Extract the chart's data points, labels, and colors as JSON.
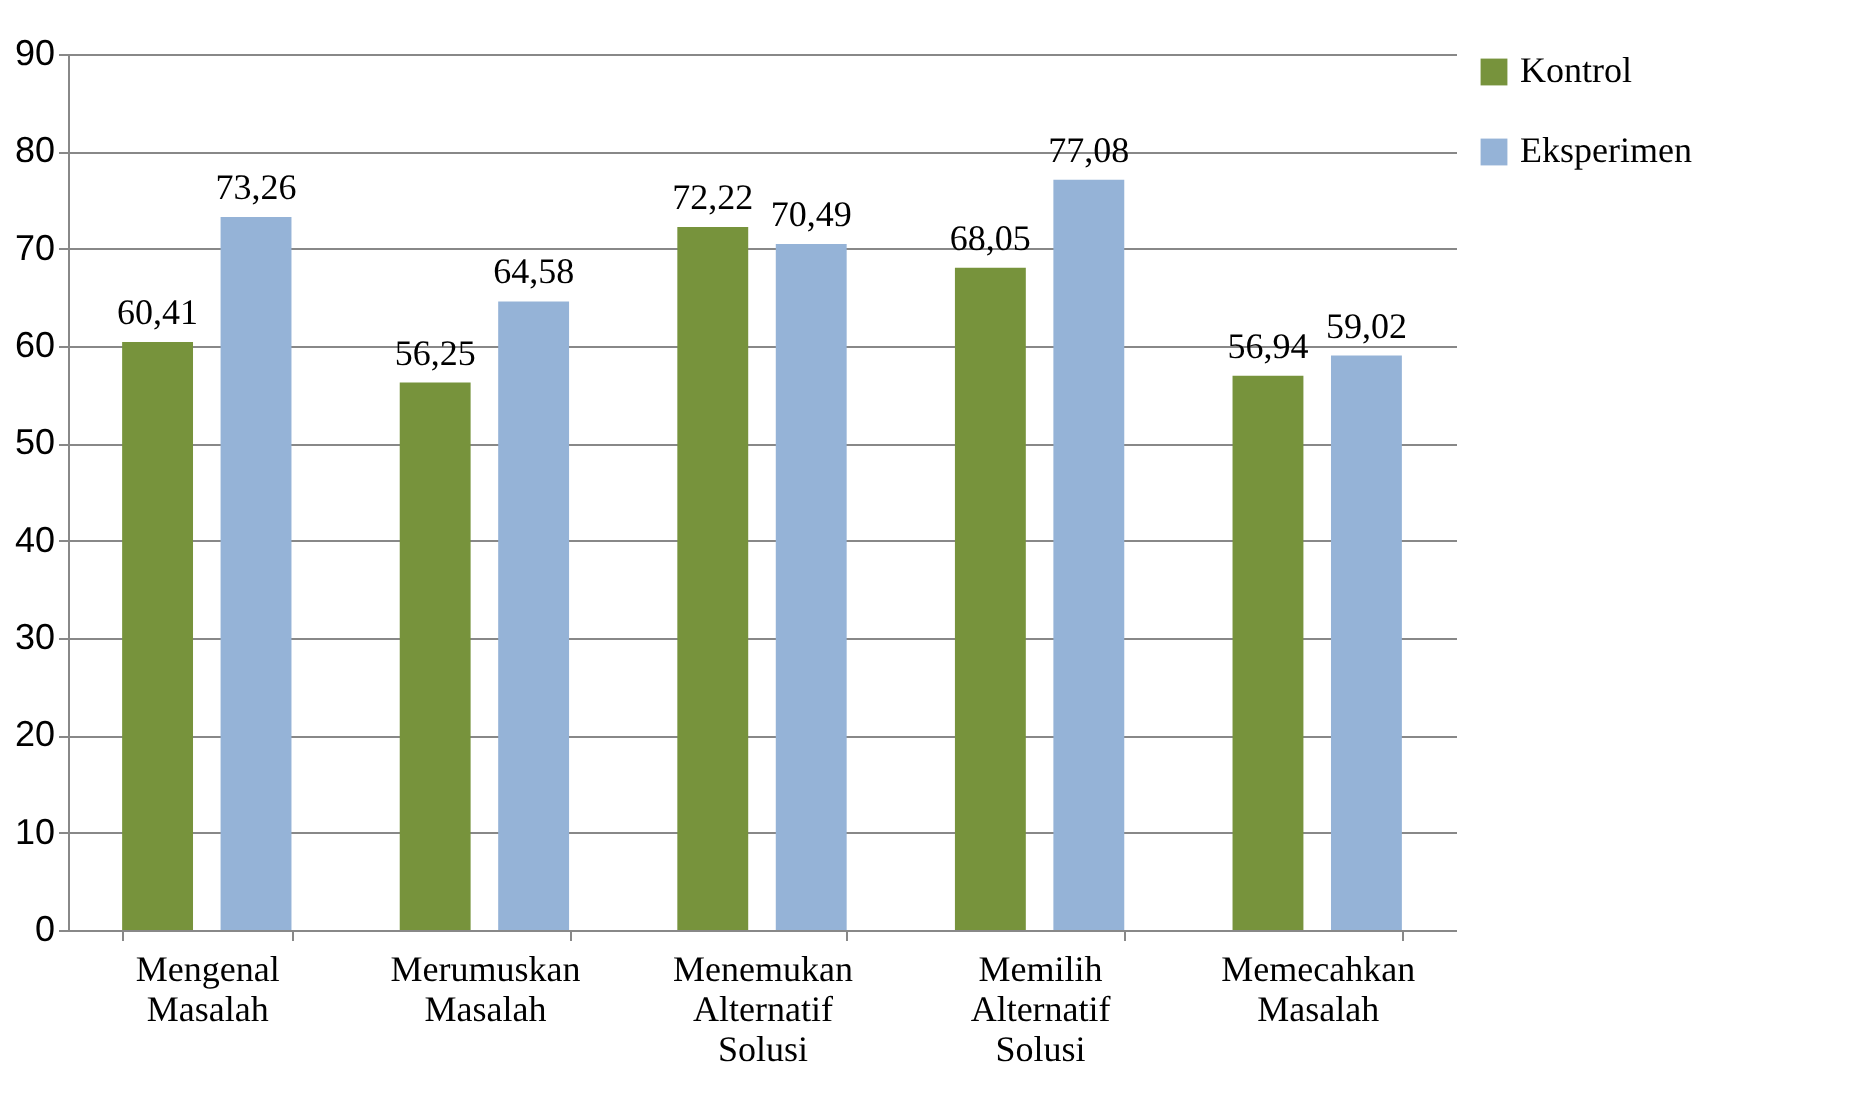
{
  "chart_data": {
    "type": "bar",
    "categories": [
      "Mengenal Masalah",
      "Merumuskan Masalah",
      "Menemukan Alternatif Solusi",
      "Memilih Alternatif Solusi",
      "Memecahkan Masalah"
    ],
    "series": [
      {
        "name": "Kontrol",
        "color": "#77933c",
        "values": [
          60.41,
          56.25,
          72.22,
          68.05,
          56.94
        ],
        "value_labels": [
          "60,41",
          "56,25",
          "72,22",
          "68,05",
          "56,94"
        ]
      },
      {
        "name": "Eksperimen",
        "color": "#95b3d7",
        "values": [
          73.26,
          64.58,
          70.49,
          77.08,
          59.02
        ],
        "value_labels": [
          "73,26",
          "64,58",
          "70,49",
          "77,08",
          "59,02"
        ]
      }
    ],
    "ylim": [
      0,
      90
    ],
    "yticks": [
      0,
      10,
      20,
      30,
      40,
      50,
      60,
      70,
      80,
      90
    ],
    "grid": "y",
    "legend": "right"
  }
}
